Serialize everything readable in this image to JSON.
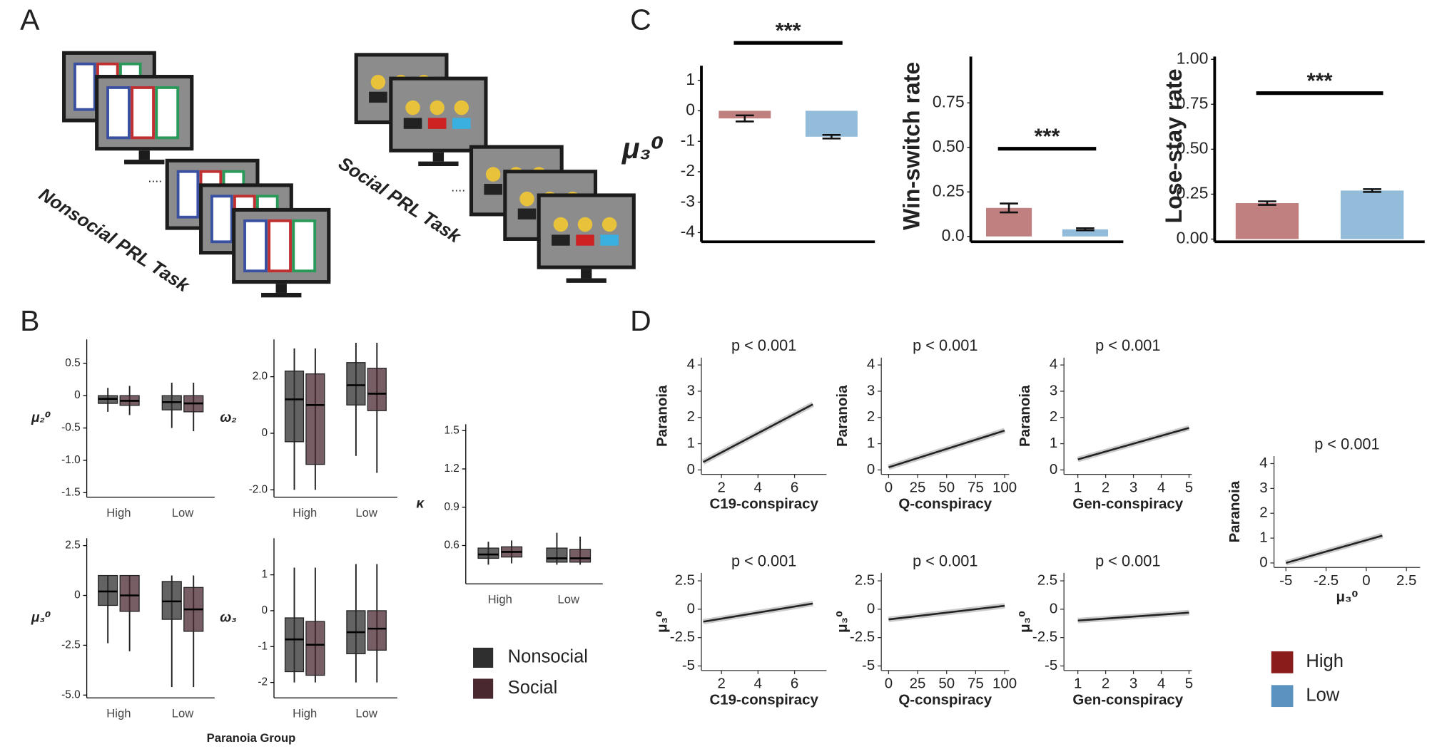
{
  "panel_labels": [
    "A",
    "B",
    "C",
    "D"
  ],
  "panel_a": {
    "tasks": [
      "Nonsocial PRL Task",
      "Social PRL Task"
    ],
    "ellipsis": "...."
  },
  "box_xlabel": "Paranoia Group",
  "box_legend": [
    {
      "name": "Nonsocial",
      "color": "#2f2f2f"
    },
    {
      "name": "Social",
      "color": "#4a2830"
    }
  ],
  "group_legend": [
    {
      "name": "High",
      "color": "#8b1c1c"
    },
    {
      "name": "Low",
      "color": "#5a93bf"
    }
  ],
  "chart_data": [
    {
      "type": "bar",
      "ylabel": "μ₃⁰",
      "significance": "***",
      "values": [
        -0.25,
        -0.85
      ],
      "errors": [
        0.1,
        0.06
      ],
      "colors": [
        "#b56a6a",
        "#7fb0d4"
      ],
      "ylim": [
        -4.3,
        1.48
      ],
      "yticks": [
        -4,
        -3,
        -2,
        -1,
        0,
        1
      ]
    },
    {
      "type": "bar",
      "ylabel": "Win-switch rate",
      "significance": "***",
      "values": [
        0.16,
        0.04
      ],
      "errors": [
        0.025,
        0.006
      ],
      "colors": [
        "#b56a6a",
        "#7fb0d4"
      ],
      "ylim": [
        -0.03,
        1.01
      ],
      "yticks": [
        {
          "value": 0,
          "label": "0.0"
        },
        {
          "value": 0.25,
          "label": "0.25"
        },
        {
          "value": 0.5,
          "label": "0.50"
        },
        {
          "value": 0.75,
          "label": "0.75"
        }
      ]
    },
    {
      "type": "bar",
      "ylabel": "Lose-stay rate",
      "significance": "***",
      "values": [
        0.2,
        0.27
      ],
      "errors": [
        0.01,
        0.008
      ],
      "colors": [
        "#b56a6a",
        "#7fb0d4"
      ],
      "ylim": [
        -0.015,
        1.015
      ],
      "yticks": [
        {
          "value": 0,
          "label": "0.00"
        },
        {
          "value": 0.25,
          "label": "0.25"
        },
        {
          "value": 0.5,
          "label": "0.50"
        },
        {
          "value": 0.75,
          "label": "0.75"
        },
        {
          "value": 1,
          "label": "1.00"
        }
      ]
    },
    {
      "type": "box",
      "ylabel": "μ₂⁰",
      "categories": [
        "High",
        "Low"
      ],
      "ylim": [
        -1.57,
        0.87
      ],
      "yticks": [
        -1.5,
        {
          "value": -1,
          "label": "-1.0"
        },
        -0.5,
        0,
        0.5
      ],
      "series": [
        {
          "boxes": [
            {
              "q1": -0.12,
              "median": -0.05,
              "q3": 0.0,
              "whisker_low": -0.25,
              "whisker_high": 0.12
            },
            {
              "q1": -0.22,
              "median": -0.1,
              "q3": 0.0,
              "whisker_low": -0.5,
              "whisker_high": 0.2
            }
          ]
        },
        {
          "boxes": [
            {
              "q1": -0.15,
              "median": -0.08,
              "q3": 0.0,
              "whisker_low": -0.3,
              "whisker_high": 0.15
            },
            {
              "q1": -0.25,
              "median": -0.12,
              "q3": 0.0,
              "whisker_low": -0.55,
              "whisker_high": 0.2
            }
          ]
        }
      ]
    },
    {
      "type": "box",
      "ylabel": "ω₂",
      "categories": [
        "High",
        "Low"
      ],
      "ylim": [
        -2.26,
        3.32
      ],
      "yticks": [
        {
          "value": -2,
          "label": "-2.0"
        },
        0,
        {
          "value": 2,
          "label": "2.0"
        }
      ],
      "series": [
        {
          "boxes": [
            {
              "q1": -0.3,
              "median": 1.2,
              "q3": 2.2,
              "whisker_low": -2.0,
              "whisker_high": 3.0
            },
            {
              "q1": 1.0,
              "median": 1.7,
              "q3": 2.5,
              "whisker_low": -0.8,
              "whisker_high": 3.2
            }
          ]
        },
        {
          "boxes": [
            {
              "q1": -1.1,
              "median": 1.0,
              "q3": 2.1,
              "whisker_low": -2.0,
              "whisker_high": 3.0
            },
            {
              "q1": 0.8,
              "median": 1.4,
              "q3": 2.3,
              "whisker_low": -1.4,
              "whisker_high": 3.2
            }
          ]
        }
      ]
    },
    {
      "type": "box",
      "ylabel": "κ",
      "categories": [
        "High",
        "Low"
      ],
      "ylim": [
        0.3,
        1.55
      ],
      "yticks": [
        0.6,
        0.9,
        1.2,
        1.5
      ],
      "series": [
        {
          "boxes": [
            {
              "q1": 0.5,
              "median": 0.53,
              "q3": 0.58,
              "whisker_low": 0.45,
              "whisker_high": 0.63
            },
            {
              "q1": 0.47,
              "median": 0.5,
              "q3": 0.58,
              "whisker_low": 0.45,
              "whisker_high": 0.7
            }
          ]
        },
        {
          "boxes": [
            {
              "q1": 0.51,
              "median": 0.55,
              "q3": 0.59,
              "whisker_low": 0.46,
              "whisker_high": 0.64
            },
            {
              "q1": 0.47,
              "median": 0.5,
              "q3": 0.57,
              "whisker_low": 0.45,
              "whisker_high": 0.67
            }
          ]
        }
      ]
    },
    {
      "type": "box",
      "ylabel": "μ₃⁰",
      "categories": [
        "High",
        "Low"
      ],
      "ylim": [
        -5.14,
        2.87
      ],
      "yticks": [
        {
          "value": -5,
          "label": "-5.0"
        },
        -2.5,
        0,
        2.5
      ],
      "series": [
        {
          "boxes": [
            {
              "q1": -0.5,
              "median": 0.2,
              "q3": 1.0,
              "whisker_low": -2.4,
              "whisker_high": 1.0
            },
            {
              "q1": -1.2,
              "median": -0.3,
              "q3": 0.7,
              "whisker_low": -4.6,
              "whisker_high": 1.0
            }
          ]
        },
        {
          "boxes": [
            {
              "q1": -0.8,
              "median": 0.0,
              "q3": 1.0,
              "whisker_low": -2.8,
              "whisker_high": 1.0
            },
            {
              "q1": -1.8,
              "median": -0.7,
              "q3": 0.4,
              "whisker_low": -4.6,
              "whisker_high": 1.0
            }
          ]
        }
      ]
    },
    {
      "type": "box",
      "ylabel": "ω₃",
      "categories": [
        "High",
        "Low"
      ],
      "ylim": [
        -2.43,
        2.02
      ],
      "yticks": [
        -2,
        -1,
        0,
        1
      ],
      "series": [
        {
          "boxes": [
            {
              "q1": -1.7,
              "median": -0.8,
              "q3": -0.2,
              "whisker_low": -2.0,
              "whisker_high": 1.2
            },
            {
              "q1": -1.2,
              "median": -0.6,
              "q3": 0.0,
              "whisker_low": -2.0,
              "whisker_high": 1.3
            }
          ]
        },
        {
          "boxes": [
            {
              "q1": -1.8,
              "median": -0.95,
              "q3": -0.3,
              "whisker_low": -2.0,
              "whisker_high": 1.2
            },
            {
              "q1": -1.1,
              "median": -0.5,
              "q3": 0.0,
              "whisker_low": -2.0,
              "whisker_high": 1.3
            }
          ]
        }
      ]
    },
    {
      "type": "scatter",
      "title": "p < 0.001",
      "xlabel": "C19-conspiracy",
      "ylabel": "Paranoia",
      "xlim": [
        0.9,
        7.75
      ],
      "xticks": [
        2,
        4,
        6
      ],
      "ylim": [
        -0.17,
        4.28
      ],
      "yticks": [
        0,
        1,
        2,
        3,
        4
      ],
      "fit": {
        "x": [
          1,
          7
        ],
        "y": [
          0.3,
          2.5
        ]
      }
    },
    {
      "type": "scatter",
      "title": "p < 0.001",
      "xlabel": "Q-conspiracy",
      "ylabel": "Paranoia",
      "xlim": [
        -6.3,
        103.9
      ],
      "xticks": [
        0,
        25,
        50,
        75,
        100
      ],
      "ylim": [
        -0.17,
        4.28
      ],
      "yticks": [
        0,
        1,
        2,
        3,
        4
      ],
      "fit": {
        "x": [
          0,
          100
        ],
        "y": [
          0.1,
          1.5
        ]
      }
    },
    {
      "type": "scatter",
      "title": "p < 0.001",
      "xlabel": "Gen-conspiracy",
      "ylabel": "Paranoia",
      "xlim": [
        0.5,
        5.1
      ],
      "xticks": [
        1,
        2,
        3,
        4,
        5
      ],
      "ylim": [
        -0.17,
        4.28
      ],
      "yticks": [
        0,
        1,
        2,
        3,
        4
      ],
      "fit": {
        "x": [
          1,
          5
        ],
        "y": [
          0.4,
          1.6
        ]
      }
    },
    {
      "type": "scatter",
      "title": "p < 0.001",
      "xlabel": "C19-conspiracy",
      "ylabel": "μ₃⁰",
      "xlim": [
        0.9,
        7.75
      ],
      "xticks": [
        2,
        4,
        6
      ],
      "ylim": [
        -5.4,
        3.2
      ],
      "yticks": [
        -5,
        -2.5,
        0,
        2.5
      ],
      "fit": {
        "x": [
          1,
          7
        ],
        "y": [
          -1.1,
          0.5
        ]
      }
    },
    {
      "type": "scatter",
      "title": "p < 0.001",
      "xlabel": "Q-conspiracy",
      "ylabel": "μ₃⁰",
      "xlim": [
        -6.3,
        103.9
      ],
      "xticks": [
        0,
        25,
        50,
        75,
        100
      ],
      "ylim": [
        -5.4,
        3.2
      ],
      "yticks": [
        -5,
        -2.5,
        0,
        2.5
      ],
      "fit": {
        "x": [
          0,
          100
        ],
        "y": [
          -0.9,
          0.3
        ]
      }
    },
    {
      "type": "scatter",
      "title": "p < 0.001",
      "xlabel": "Gen-conspiracy",
      "ylabel": "μ₃⁰",
      "xlim": [
        0.5,
        5.1
      ],
      "xticks": [
        1,
        2,
        3,
        4,
        5
      ],
      "ylim": [
        -5.4,
        3.2
      ],
      "yticks": [
        -5,
        -2.5,
        0,
        2.5
      ],
      "fit": {
        "x": [
          1,
          5
        ],
        "y": [
          -1.0,
          -0.3
        ]
      }
    },
    {
      "type": "scatter",
      "title": "p < 0.001",
      "xlabel": "μ₃⁰",
      "ylabel": "Paranoia",
      "xlim": [
        -5.74,
        3.35
      ],
      "xticks": [
        -5,
        -2.5,
        0,
        2.5
      ],
      "ylim": [
        -0.18,
        4.3
      ],
      "yticks": [
        0,
        1,
        2,
        3,
        4
      ],
      "fit": {
        "x": [
          -5,
          1
        ],
        "y": [
          0.0,
          1.1
        ]
      }
    }
  ]
}
